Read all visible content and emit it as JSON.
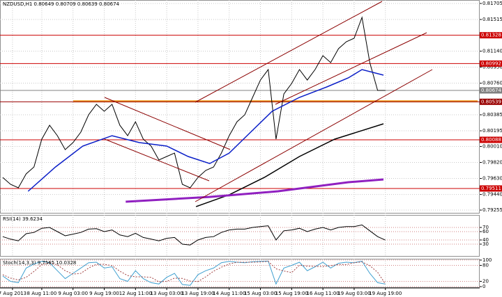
{
  "chart_data": [
    {
      "type": "line",
      "title": "NZDUSD,H1  0.80649 0.80709 0.80639 0.80674",
      "grid": true,
      "xlim": [
        -1.4,
        244.3
      ],
      "xticks": [
        {
          "value": 5,
          "label": "7 Aug 2013"
        },
        {
          "value": 20,
          "label": "8 Aug 11:00"
        },
        {
          "value": 36,
          "label": "9 Aug 03:00"
        },
        {
          "value": 52,
          "label": "9 Aug 19:00"
        },
        {
          "value": 68,
          "label": "12 Aug 11:00"
        },
        {
          "value": 84,
          "label": "13 Aug 03:00"
        },
        {
          "value": 100,
          "label": "13 Aug 19:00"
        },
        {
          "value": 116,
          "label": "14 Aug 11:00"
        },
        {
          "value": 132,
          "label": "15 Aug 03:00"
        },
        {
          "value": 148,
          "label": "15 Aug 19:00"
        },
        {
          "value": 164,
          "label": "16 Aug 11:00"
        },
        {
          "value": 180,
          "label": "19 Aug 03:00"
        },
        {
          "value": 196,
          "label": "19 Aug 19:00"
        }
      ],
      "ylim": [
        0.79214,
        0.81746
      ],
      "yticks": [
        0.81705,
        0.81515,
        {
          "value": 0.8114,
          "label": "0.81140"
        },
        {
          "value": 0.8095,
          "label": "0.80950"
        },
        {
          "value": 0.8076,
          "label": "0.80760"
        },
        0.80385,
        0.80195,
        {
          "value": 0.8001,
          "label": "0.80010"
        },
        {
          "value": 0.7982,
          "label": "0.79820"
        },
        {
          "value": 0.7963,
          "label": "0.79630"
        },
        {
          "value": 0.7944,
          "label": "0.79440"
        },
        0.79255
      ],
      "levels": [
        {
          "value": 0.81328,
          "color": "#cc0000"
        },
        {
          "value": 0.80992,
          "color": "#cc0000"
        },
        {
          "value": 0.80674,
          "color": "#808080"
        },
        {
          "value": 0.80539,
          "color": "#990000"
        },
        {
          "value": 0.80088,
          "color": "#cc0000"
        },
        {
          "value": 0.79511,
          "color": "#cc0000"
        }
      ],
      "bands": [
        {
          "value": 0.80545,
          "color": "#f0a030"
        }
      ],
      "series": [
        {
          "color": "#000000",
          "width": 1,
          "x": [
            0,
            4,
            8,
            12,
            16,
            20,
            24,
            28,
            32,
            36,
            40,
            44,
            48,
            52,
            56,
            60,
            64,
            68,
            72,
            76,
            80,
            84,
            88,
            92,
            96,
            100,
            104,
            108,
            112,
            116,
            120,
            124,
            128,
            132,
            136,
            140,
            144,
            148,
            152,
            156,
            160,
            164,
            168,
            172,
            176,
            180,
            184,
            188,
            192,
            196
          ],
          "values": [
            0.79642,
            0.7956,
            0.79519,
            0.79684,
            0.79766,
            0.80096,
            0.80261,
            0.80137,
            0.79972,
            0.80055,
            0.80179,
            0.80385,
            0.80509,
            0.80426,
            0.80509,
            0.80261,
            0.80137,
            0.80302,
            0.80096,
            0.80014,
            0.79849,
            0.7989,
            0.79931,
            0.7956,
            0.79519,
            0.79642,
            0.79725,
            0.79766,
            0.79931,
            0.80137,
            0.80302,
            0.80385,
            0.80591,
            0.80797,
            0.80921,
            0.80096,
            0.80632,
            0.80756,
            0.80921,
            0.80797,
            0.80921,
            0.81086,
            0.81004,
            0.81169,
            0.81251,
            0.81292,
            0.8154,
            0.81004,
            0.80674,
            0.80674
          ]
        },
        {
          "color": "#0a1ec8",
          "width": 1.5,
          "x": [
            13,
            27,
            41,
            56,
            70,
            84,
            95,
            106,
            116,
            127,
            138,
            152,
            166,
            177,
            184,
            195
          ],
          "values": [
            0.79478,
            0.79766,
            0.80014,
            0.80137,
            0.80055,
            0.80014,
            0.7989,
            0.79807,
            0.79931,
            0.80179,
            0.80426,
            0.80591,
            0.80715,
            0.80822,
            0.80921,
            0.80855
          ]
        },
        {
          "color": "#000000",
          "width": 1.5,
          "x": [
            99,
            116,
            134,
            152,
            170,
            195
          ],
          "values": [
            0.79296,
            0.79436,
            0.79642,
            0.7989,
            0.80096,
            0.80278
          ]
        },
        {
          "color": "#9020c0",
          "width": 3,
          "x": [
            63,
            106,
            141,
            177,
            195
          ],
          "values": [
            0.79354,
            0.79411,
            0.79478,
            0.79585,
            0.79618
          ]
        }
      ]
    },
    {
      "type": "line",
      "title": "RSI(14) 39.6234",
      "grid": true,
      "ylim": [
        0,
        100
      ],
      "yticks": [
        30,
        40,
        60,
        70
      ],
      "series": [
        {
          "color": "#000000",
          "width": 1,
          "x": [
            0,
            4,
            8,
            12,
            16,
            20,
            24,
            28,
            32,
            36,
            40,
            44,
            48,
            52,
            56,
            60,
            64,
            68,
            72,
            76,
            80,
            84,
            88,
            92,
            96,
            100,
            104,
            108,
            112,
            116,
            120,
            124,
            128,
            132,
            136,
            140,
            144,
            148,
            152,
            156,
            160,
            164,
            168,
            172,
            176,
            180,
            184,
            188,
            192,
            196
          ],
          "values": [
            48,
            42,
            38,
            55,
            58,
            68,
            70,
            60,
            50,
            54,
            58,
            66,
            67,
            60,
            64,
            52,
            48,
            56,
            46,
            42,
            38,
            44,
            46,
            30,
            28,
            40,
            46,
            48,
            58,
            64,
            66,
            66,
            70,
            72,
            74,
            40,
            62,
            64,
            68,
            60,
            66,
            70,
            64,
            70,
            72,
            72,
            76,
            62,
            48,
            39.6234
          ]
        }
      ]
    },
    {
      "type": "line",
      "title": "Stoch(14,3,3) 9.7565 10.0328",
      "grid": true,
      "ylim": [
        -5,
        105
      ],
      "yticks": [
        0,
        20,
        80,
        100
      ],
      "series": [
        {
          "color": "#40a0d0",
          "width": 1,
          "x": [
            0,
            4,
            8,
            12,
            16,
            20,
            24,
            28,
            32,
            36,
            40,
            44,
            48,
            52,
            56,
            60,
            64,
            68,
            72,
            76,
            80,
            84,
            88,
            92,
            96,
            100,
            104,
            108,
            112,
            116,
            120,
            124,
            128,
            132,
            136,
            140,
            144,
            148,
            152,
            156,
            160,
            164,
            168,
            172,
            176,
            180,
            184,
            188,
            192,
            196
          ],
          "values": [
            40,
            20,
            15,
            70,
            85,
            95,
            90,
            60,
            30,
            50,
            70,
            90,
            92,
            70,
            75,
            30,
            20,
            60,
            30,
            15,
            10,
            35,
            50,
            8,
            5,
            45,
            60,
            70,
            90,
            95,
            92,
            90,
            94,
            95,
            96,
            10,
            70,
            80,
            92,
            60,
            75,
            92,
            70,
            88,
            92,
            90,
            96,
            50,
            15,
            9.7565
          ]
        },
        {
          "color": "#a04040",
          "width": 1,
          "dashed": true,
          "x": [
            0,
            4,
            8,
            12,
            16,
            20,
            24,
            28,
            32,
            36,
            40,
            44,
            48,
            52,
            56,
            60,
            64,
            68,
            72,
            76,
            80,
            84,
            88,
            92,
            96,
            100,
            104,
            108,
            112,
            116,
            120,
            124,
            128,
            132,
            136,
            140,
            144,
            148,
            152,
            156,
            160,
            164,
            168,
            172,
            176,
            180,
            184,
            188,
            192,
            196
          ],
          "values": [
            45,
            32,
            25,
            35,
            57,
            83,
            90,
            82,
            60,
            47,
            50,
            70,
            84,
            84,
            79,
            58,
            42,
            37,
            37,
            35,
            18,
            20,
            32,
            31,
            21,
            19,
            37,
            58,
            73,
            85,
            92,
            92,
            92,
            93,
            95,
            67,
            59,
            53,
            81,
            77,
            76,
            76,
            79,
            83,
            83,
            90,
            93,
            79,
            54,
            10.0328
          ]
        }
      ]
    }
  ]
}
